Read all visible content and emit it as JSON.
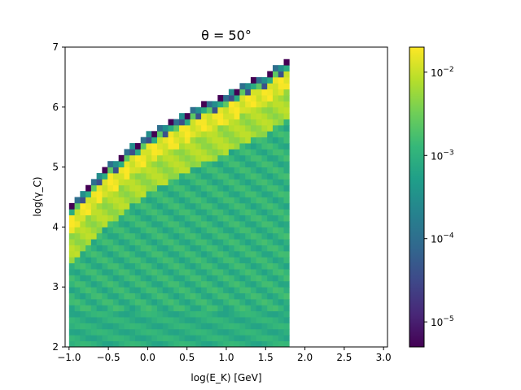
{
  "chart_data": {
    "type": "heatmap",
    "title": "θ = 50°",
    "xlabel": "log(E_K) [GeV]",
    "ylabel": "log(γ_C)",
    "xlim": [
      -1.05,
      3.05
    ],
    "ylim": [
      2,
      7
    ],
    "x_ticks": [
      "−1.0",
      "−0.5",
      "0.0",
      "0.5",
      "1.0",
      "1.5",
      "2.0",
      "2.5",
      "3.0"
    ],
    "y_ticks": [
      "2",
      "3",
      "4",
      "5",
      "6",
      "7"
    ],
    "x_bin_width": 0.07,
    "y_bin_width": 0.1,
    "x_data_range": [
      -1.0,
      1.8
    ],
    "ridge_points": [
      [
        -1.0,
        4.3
      ],
      [
        -0.5,
        5.0
      ],
      [
        0.0,
        5.5
      ],
      [
        0.5,
        5.85
      ],
      [
        1.0,
        6.2
      ],
      [
        1.5,
        6.5
      ],
      [
        1.8,
        6.75
      ]
    ],
    "ridge_value": 0.02,
    "edge_values": [
      5e-06,
      0.0001,
      0.0003
    ],
    "body_values": {
      "near_ridge": 0.008,
      "interior": 0.0015,
      "low_region": 0.0012
    },
    "colorbar": {
      "colormap": "viridis",
      "scale": "log",
      "vmin": 5e-06,
      "vmax": 0.02,
      "ticks": [
        {
          "base": "10",
          "exp": "−5",
          "value": 1e-05
        },
        {
          "base": "10",
          "exp": "−4",
          "value": 0.0001
        },
        {
          "base": "10",
          "exp": "−3",
          "value": 0.001
        },
        {
          "base": "10",
          "exp": "−2",
          "value": 0.01
        }
      ]
    },
    "colors": {
      "viridis": [
        "#440154",
        "#482878",
        "#3e4989",
        "#31688e",
        "#26828e",
        "#1f9e89",
        "#35b779",
        "#6ece58",
        "#b5de2b",
        "#fde725"
      ]
    }
  }
}
